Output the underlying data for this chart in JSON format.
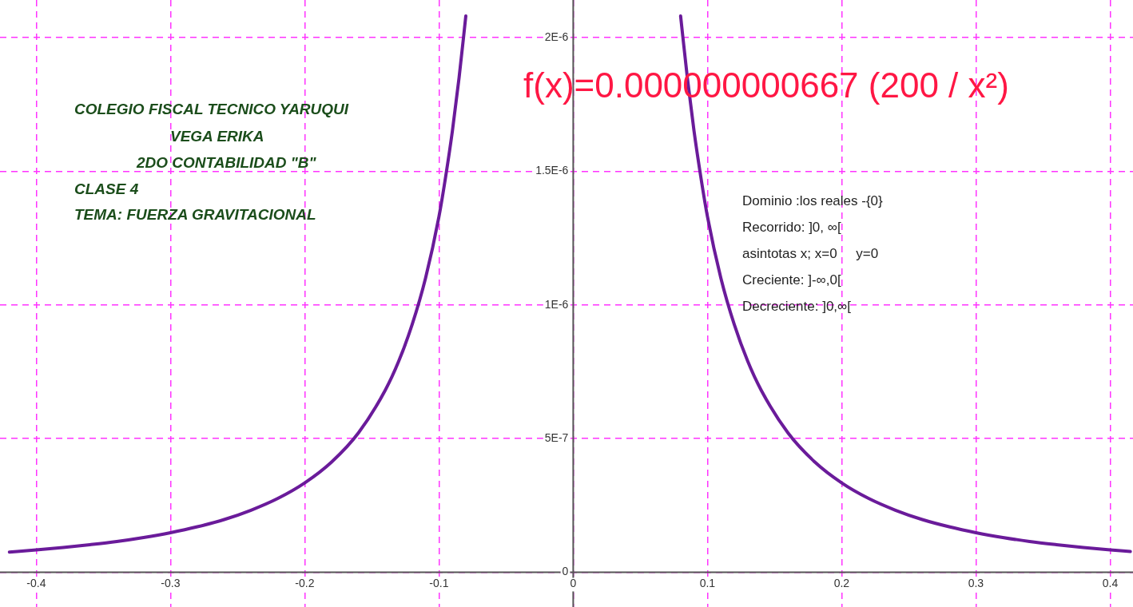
{
  "chart_data": {
    "type": "line",
    "title": "f(x)=0.000000000667 (200 / x²)",
    "annotations": [
      "COLEGIO FISCAL TECNICO YARUQUI",
      "VEGA ERIKA",
      "2DO CONTABILIDAD \"B\"",
      "CLASE 4",
      "TEMA: FUERZA GRAVITACIONAL",
      "Dominio :los reales -{0}",
      "Recorrido: ]0, ∞[",
      "asintotas x; x=0     y=0",
      "Creciente: ]-∞,0[",
      "Decreciente: ]0,∞["
    ],
    "series": [
      {
        "color": "#6a1b9a",
        "x": [
          -0.42,
          -0.4,
          -0.38,
          -0.36,
          -0.34,
          -0.32,
          -0.3,
          -0.28,
          -0.26,
          -0.24,
          -0.22,
          -0.2,
          -0.18,
          -0.16,
          -0.14,
          -0.13,
          -0.12,
          -0.11,
          -0.1,
          -0.095,
          -0.09,
          -0.085,
          -0.08,
          0,
          0.08,
          0.085,
          0.09,
          0.095,
          0.1,
          0.11,
          0.12,
          0.13,
          0.14,
          0.16,
          0.18,
          0.2,
          0.22,
          0.24,
          0.26,
          0.28,
          0.3,
          0.32,
          0.34,
          0.36,
          0.38,
          0.4,
          0.415
        ],
        "values": [
          7.56e-08,
          8.34e-08,
          9.24e-08,
          1.03e-07,
          1.15e-07,
          1.3e-07,
          1.48e-07,
          1.7e-07,
          1.97e-07,
          2.32e-07,
          2.76e-07,
          3.34e-07,
          4.12e-07,
          5.21e-07,
          6.81e-07,
          7.89e-07,
          9.26e-07,
          1.1e-06,
          1.33e-06,
          1.48e-06,
          1.65e-06,
          1.85e-06,
          2.08e-06,
          null,
          2.08e-06,
          1.85e-06,
          1.65e-06,
          1.48e-06,
          1.33e-06,
          1.1e-06,
          9.26e-07,
          7.89e-07,
          6.81e-07,
          5.21e-07,
          4.12e-07,
          3.34e-07,
          2.76e-07,
          2.32e-07,
          1.97e-07,
          1.7e-07,
          1.48e-07,
          1.3e-07,
          1.15e-07,
          1.03e-07,
          9.24e-08,
          8.34e-08,
          7.75e-08
        ]
      }
    ],
    "xlim": [
      -0.427,
      0.417
    ],
    "ylim": [
      -1.3e-07,
      2.14e-06
    ],
    "xticks": [
      -0.4,
      -0.3,
      -0.2,
      -0.1,
      0,
      0.1,
      0.2,
      0.3,
      0.4
    ],
    "yticks": [
      0,
      {
        "value": 5e-07,
        "label": "5E-7"
      },
      {
        "value": 1e-06,
        "label": "1E-6"
      },
      {
        "value": 1.5e-06,
        "label": "1.5E-6"
      },
      {
        "value": 2e-06,
        "label": "2E-6"
      }
    ],
    "grid": true,
    "legend": false,
    "marker": "none",
    "line_style": "solid"
  }
}
